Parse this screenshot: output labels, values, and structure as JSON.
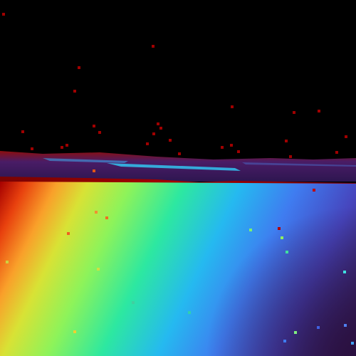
{
  "image": {
    "kind": "depth-map render",
    "colormap": "turbo",
    "background_color": "#000000",
    "horizon_color": "#3a2466",
    "far_color": "#8b0000",
    "near_color": "#30123b"
  }
}
